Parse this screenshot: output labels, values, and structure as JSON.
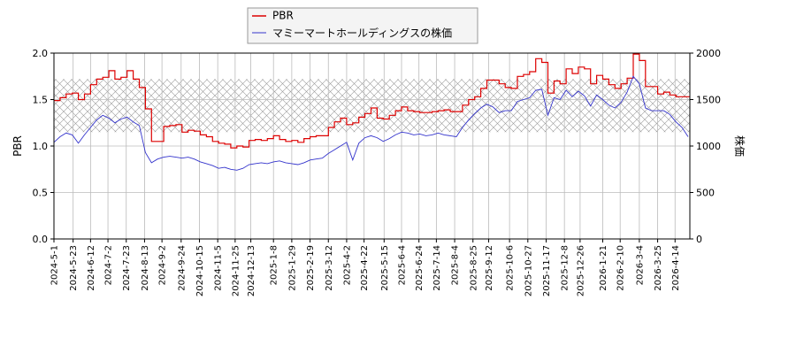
{
  "chart_data": {
    "type": "line",
    "legend": {
      "placement": "top-center",
      "entries": [
        {
          "name": "PBR",
          "color": "#dd0000"
        },
        {
          "name": "マミーマートホールディングスの株価",
          "color": "#3333cc"
        }
      ]
    },
    "ylabel_left": "PBR",
    "ylabel_right": "株価",
    "ylim_left": [
      0,
      2.0
    ],
    "ylim_right": [
      0,
      2000
    ],
    "yticks_left": [
      "0.0",
      "0.5",
      "1.0",
      "1.5",
      "2.0"
    ],
    "yticks_right": [
      "0",
      "500",
      "1000",
      "1500",
      "2000"
    ],
    "x_range": [
      "2024-05-01",
      "2026-05-01"
    ],
    "xticks": [
      "2024-5-1",
      "2024-5-23",
      "2024-6-12",
      "2024-7-2",
      "2024-7-23",
      "2024-8-13",
      "2024-9-2",
      "2024-9-24",
      "2024-10-15",
      "2024-11-5",
      "2024-11-25",
      "2024-12-13",
      "2025-1-8",
      "2025-1-29",
      "2025-2-19",
      "2025-3-12",
      "2025-4-2",
      "2025-4-22",
      "2025-5-15",
      "2025-6-4",
      "2025-6-24",
      "2025-7-14",
      "2025-8-4",
      "2025-8-25",
      "2025-9-12",
      "2025-10-6",
      "2025-10-27",
      "2025-11-17",
      "2025-12-8",
      "2025-12-26",
      "2026-1-21",
      "2026-2-10",
      "2026-3-4",
      "2026-3-25",
      "2026-4-14"
    ],
    "grid": true,
    "band": {
      "y_left": [
        1.15,
        1.72
      ],
      "pattern": "crosshatch"
    },
    "series": [
      {
        "name": "PBR",
        "axis": "left",
        "color": "#dd0000",
        "x": [
          "2024-05-01",
          "2024-05-08",
          "2024-05-15",
          "2024-05-22",
          "2024-05-29",
          "2024-06-05",
          "2024-06-12",
          "2024-06-19",
          "2024-06-26",
          "2024-07-03",
          "2024-07-10",
          "2024-07-17",
          "2024-07-24",
          "2024-07-31",
          "2024-08-07",
          "2024-08-14",
          "2024-08-21",
          "2024-08-28",
          "2024-09-04",
          "2024-09-11",
          "2024-09-18",
          "2024-09-25",
          "2024-10-02",
          "2024-10-09",
          "2024-10-16",
          "2024-10-23",
          "2024-10-30",
          "2024-11-06",
          "2024-11-13",
          "2024-11-20",
          "2024-11-27",
          "2024-12-04",
          "2024-12-11",
          "2024-12-18",
          "2024-12-25",
          "2025-01-01",
          "2025-01-08",
          "2025-01-15",
          "2025-01-22",
          "2025-01-29",
          "2025-02-05",
          "2025-02-12",
          "2025-02-19",
          "2025-02-26",
          "2025-03-05",
          "2025-03-12",
          "2025-03-19",
          "2025-03-26",
          "2025-04-02",
          "2025-04-09",
          "2025-04-16",
          "2025-04-23",
          "2025-04-30",
          "2025-05-07",
          "2025-05-14",
          "2025-05-21",
          "2025-05-28",
          "2025-06-04",
          "2025-06-11",
          "2025-06-18",
          "2025-06-25",
          "2025-07-02",
          "2025-07-09",
          "2025-07-16",
          "2025-07-23",
          "2025-07-30",
          "2025-08-06",
          "2025-08-13",
          "2025-08-20",
          "2025-08-27",
          "2025-09-03",
          "2025-09-10",
          "2025-09-17",
          "2025-09-24",
          "2025-10-01",
          "2025-10-08",
          "2025-10-15",
          "2025-10-22",
          "2025-10-29",
          "2025-11-05",
          "2025-11-12",
          "2025-11-19",
          "2025-11-26",
          "2025-12-03",
          "2025-12-10",
          "2025-12-17",
          "2025-12-24",
          "2025-12-31",
          "2026-01-07",
          "2026-01-14",
          "2026-01-21",
          "2026-01-28",
          "2026-02-04",
          "2026-02-11",
          "2026-02-18",
          "2026-02-25",
          "2026-03-04",
          "2026-03-11",
          "2026-03-18",
          "2026-03-25",
          "2026-04-01",
          "2026-04-08",
          "2026-04-15",
          "2026-04-22",
          "2026-04-29"
        ],
        "values": [
          1.49,
          1.52,
          1.56,
          1.57,
          1.5,
          1.56,
          1.66,
          1.72,
          1.74,
          1.81,
          1.72,
          1.74,
          1.81,
          1.72,
          1.63,
          1.4,
          1.05,
          1.05,
          1.21,
          1.22,
          1.23,
          1.15,
          1.17,
          1.16,
          1.12,
          1.1,
          1.05,
          1.03,
          1.02,
          0.98,
          1.0,
          0.99,
          1.06,
          1.07,
          1.06,
          1.08,
          1.11,
          1.07,
          1.05,
          1.06,
          1.04,
          1.08,
          1.1,
          1.11,
          1.11,
          1.2,
          1.26,
          1.3,
          1.23,
          1.25,
          1.31,
          1.35,
          1.41,
          1.3,
          1.29,
          1.33,
          1.38,
          1.42,
          1.38,
          1.37,
          1.36,
          1.36,
          1.37,
          1.38,
          1.39,
          1.37,
          1.37,
          1.44,
          1.5,
          1.53,
          1.62,
          1.71,
          1.71,
          1.67,
          1.63,
          1.62,
          1.75,
          1.77,
          1.8,
          1.94,
          1.9,
          1.57,
          1.7,
          1.67,
          1.83,
          1.78,
          1.85,
          1.83,
          1.67,
          1.76,
          1.72,
          1.66,
          1.62,
          1.67,
          1.73,
          1.99,
          1.92,
          1.64,
          1.64,
          1.56,
          1.58,
          1.55,
          1.53,
          1.53,
          1.53
        ]
      },
      {
        "name": "マミーマートホールディングスの株価",
        "axis": "right",
        "color": "#3333cc",
        "x": [
          "2024-05-01",
          "2024-05-08",
          "2024-05-15",
          "2024-05-22",
          "2024-05-29",
          "2024-06-05",
          "2024-06-12",
          "2024-06-19",
          "2024-06-26",
          "2024-07-03",
          "2024-07-10",
          "2024-07-17",
          "2024-07-24",
          "2024-07-31",
          "2024-08-07",
          "2024-08-14",
          "2024-08-21",
          "2024-08-28",
          "2024-09-04",
          "2024-09-11",
          "2024-09-18",
          "2024-09-25",
          "2024-10-02",
          "2024-10-09",
          "2024-10-16",
          "2024-10-23",
          "2024-10-30",
          "2024-11-06",
          "2024-11-13",
          "2024-11-20",
          "2024-11-27",
          "2024-12-04",
          "2024-12-11",
          "2024-12-18",
          "2024-12-25",
          "2025-01-01",
          "2025-01-08",
          "2025-01-15",
          "2025-01-22",
          "2025-01-29",
          "2025-02-05",
          "2025-02-12",
          "2025-02-19",
          "2025-02-26",
          "2025-03-05",
          "2025-03-12",
          "2025-03-19",
          "2025-03-26",
          "2025-04-02",
          "2025-04-09",
          "2025-04-16",
          "2025-04-23",
          "2025-04-30",
          "2025-05-07",
          "2025-05-14",
          "2025-05-21",
          "2025-05-28",
          "2025-06-04",
          "2025-06-11",
          "2025-06-18",
          "2025-06-25",
          "2025-07-02",
          "2025-07-09",
          "2025-07-16",
          "2025-07-23",
          "2025-07-30",
          "2025-08-06",
          "2025-08-13",
          "2025-08-20",
          "2025-08-27",
          "2025-09-03",
          "2025-09-10",
          "2025-09-17",
          "2025-09-24",
          "2025-10-01",
          "2025-10-08",
          "2025-10-15",
          "2025-10-22",
          "2025-10-29",
          "2025-11-05",
          "2025-11-12",
          "2025-11-19",
          "2025-11-26",
          "2025-12-03",
          "2025-12-10",
          "2025-12-17",
          "2025-12-24",
          "2025-12-31",
          "2026-01-07",
          "2026-01-14",
          "2026-01-21",
          "2026-01-28",
          "2026-02-04",
          "2026-02-11",
          "2026-02-18",
          "2026-02-25",
          "2026-03-04",
          "2026-03-11",
          "2026-03-18",
          "2026-03-25",
          "2026-04-01",
          "2026-04-08",
          "2026-04-15",
          "2026-04-22",
          "2026-04-29"
        ],
        "values": [
          1040,
          1100,
          1140,
          1120,
          1030,
          1120,
          1200,
          1280,
          1330,
          1300,
          1250,
          1290,
          1310,
          1260,
          1220,
          930,
          820,
          860,
          880,
          890,
          880,
          870,
          880,
          860,
          830,
          810,
          790,
          760,
          770,
          750,
          740,
          760,
          800,
          810,
          820,
          810,
          830,
          840,
          820,
          810,
          800,
          820,
          850,
          860,
          870,
          920,
          960,
          1000,
          1040,
          850,
          1030,
          1090,
          1110,
          1090,
          1050,
          1080,
          1120,
          1150,
          1140,
          1120,
          1130,
          1110,
          1120,
          1140,
          1120,
          1110,
          1100,
          1200,
          1280,
          1350,
          1410,
          1450,
          1420,
          1360,
          1380,
          1380,
          1480,
          1500,
          1520,
          1600,
          1610,
          1330,
          1520,
          1500,
          1600,
          1530,
          1590,
          1540,
          1430,
          1550,
          1500,
          1440,
          1410,
          1470,
          1580,
          1750,
          1670,
          1410,
          1380,
          1380,
          1380,
          1340,
          1260,
          1200,
          1100
        ]
      }
    ]
  }
}
